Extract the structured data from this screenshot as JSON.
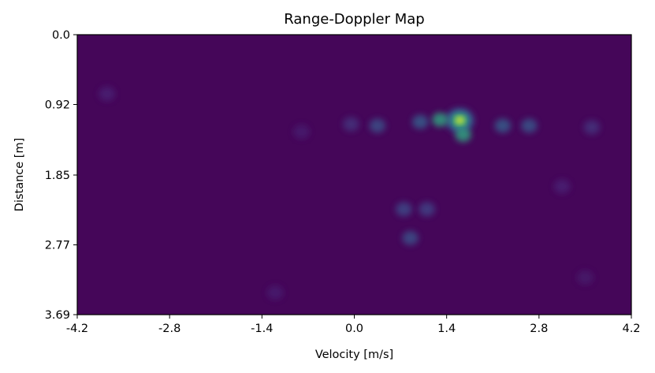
{
  "chart_data": {
    "type": "heatmap",
    "title": "Range-Doppler Map",
    "xlabel": "Velocity [m/s]",
    "ylabel": "Distance [m]",
    "xlim": [
      -4.2,
      4.2
    ],
    "ylim": [
      0.0,
      3.69
    ],
    "y_inverted": true,
    "x_ticks": [
      "-4.2",
      "-2.8",
      "-1.4",
      "0.0",
      "1.4",
      "2.8",
      "4.2"
    ],
    "y_ticks": [
      "0.0",
      "0.92",
      "1.85",
      "2.77",
      "3.69"
    ],
    "colormap": "viridis",
    "value_range": [
      0,
      1
    ],
    "background_level": 0.02,
    "peaks": [
      {
        "velocity": 1.6,
        "distance": 1.13,
        "value": 1.0
      },
      {
        "velocity": 1.65,
        "distance": 1.32,
        "value": 0.22
      },
      {
        "velocity": 1.3,
        "distance": 1.12,
        "value": 0.22
      },
      {
        "velocity": 1.0,
        "distance": 1.15,
        "value": 0.12
      },
      {
        "velocity": 0.35,
        "distance": 1.2,
        "value": 0.1
      },
      {
        "velocity": 2.25,
        "distance": 1.2,
        "value": 0.12
      },
      {
        "velocity": 2.65,
        "distance": 1.2,
        "value": 0.11
      },
      {
        "velocity": 3.6,
        "distance": 1.22,
        "value": 0.06
      },
      {
        "velocity": -0.05,
        "distance": 1.18,
        "value": 0.06
      },
      {
        "velocity": 0.75,
        "distance": 2.3,
        "value": 0.09
      },
      {
        "velocity": 1.1,
        "distance": 2.3,
        "value": 0.08
      },
      {
        "velocity": 0.85,
        "distance": 2.68,
        "value": 0.1
      },
      {
        "velocity": -3.75,
        "distance": 0.78,
        "value": 0.04
      },
      {
        "velocity": -0.8,
        "distance": 1.28,
        "value": 0.035
      },
      {
        "velocity": 3.15,
        "distance": 2.0,
        "value": 0.04
      },
      {
        "velocity": -1.2,
        "distance": 3.4,
        "value": 0.035
      },
      {
        "velocity": 3.5,
        "distance": 3.2,
        "value": 0.03
      }
    ]
  }
}
